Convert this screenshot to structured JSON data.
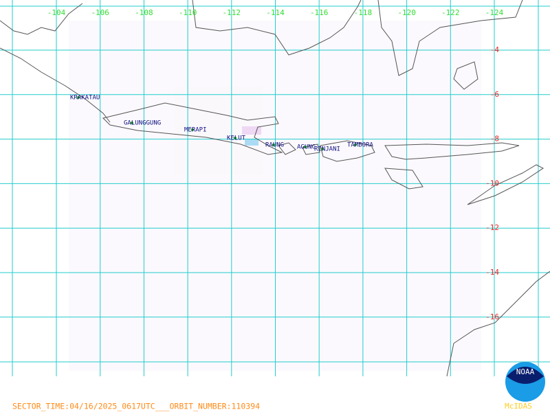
{
  "map": {
    "lon_labels": [
      -104,
      -106,
      -108,
      -110,
      -112,
      -114,
      -116,
      -118,
      -120,
      -122,
      -124
    ],
    "lat_labels": [
      -4,
      -6,
      -8,
      -10,
      -12,
      -14,
      -16
    ],
    "volcanoes": [
      "KRAKATAU",
      "GALUNGGUNG",
      "MERAPI",
      "KELUT",
      "RAUNG",
      "AGUNG",
      "RINJANI",
      "TAMBORA"
    ]
  },
  "footer": "SECTOR_TIME:04/16/2025_0617UTC___ORBIT_NUMBER:110394",
  "logo": {
    "text": "NOAA",
    "software": "McIDAS"
  }
}
